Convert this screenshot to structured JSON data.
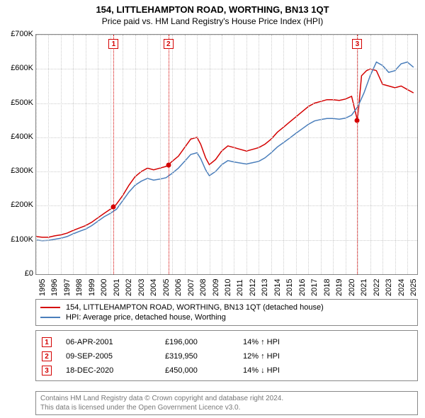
{
  "title": "154, LITTLEHAMPTON ROAD, WORTHING, BN13 1QT",
  "subtitle": "Price paid vs. HM Land Registry's House Price Index (HPI)",
  "chart": {
    "type": "line",
    "background_color": "#ffffff",
    "grid_color": "#cccccc",
    "x_min": 1995,
    "x_max": 2025.8,
    "y_min": 0,
    "y_max": 700000,
    "y_ticks": [
      0,
      100000,
      200000,
      300000,
      400000,
      500000,
      600000,
      700000
    ],
    "y_tick_labels": [
      "£0",
      "£100K",
      "£200K",
      "£300K",
      "£400K",
      "£500K",
      "£600K",
      "£700K"
    ],
    "x_ticks": [
      1995,
      1996,
      1997,
      1998,
      1999,
      2000,
      2001,
      2002,
      2003,
      2004,
      2005,
      2006,
      2007,
      2008,
      2009,
      2010,
      2011,
      2012,
      2013,
      2014,
      2015,
      2016,
      2017,
      2018,
      2019,
      2020,
      2021,
      2022,
      2023,
      2024,
      2025
    ],
    "series": [
      {
        "name": "property",
        "label": "154, LITTLEHAMPTON ROAD, WORTHING, BN13 1QT (detached house)",
        "color": "#d40000",
        "line_width": 1.5,
        "data": [
          [
            1995.0,
            110000
          ],
          [
            1995.5,
            108000
          ],
          [
            1996.0,
            108000
          ],
          [
            1996.5,
            112000
          ],
          [
            1997.0,
            115000
          ],
          [
            1997.5,
            120000
          ],
          [
            1998.0,
            128000
          ],
          [
            1998.5,
            135000
          ],
          [
            1999.0,
            142000
          ],
          [
            1999.5,
            152000
          ],
          [
            2000.0,
            165000
          ],
          [
            2000.5,
            178000
          ],
          [
            2001.0,
            190000
          ],
          [
            2001.26,
            196000
          ],
          [
            2001.5,
            205000
          ],
          [
            2002.0,
            230000
          ],
          [
            2002.5,
            260000
          ],
          [
            2003.0,
            285000
          ],
          [
            2003.5,
            300000
          ],
          [
            2004.0,
            310000
          ],
          [
            2004.5,
            305000
          ],
          [
            2005.0,
            310000
          ],
          [
            2005.5,
            315000
          ],
          [
            2005.69,
            319950
          ],
          [
            2006.0,
            330000
          ],
          [
            2006.5,
            345000
          ],
          [
            2007.0,
            370000
          ],
          [
            2007.5,
            395000
          ],
          [
            2008.0,
            400000
          ],
          [
            2008.3,
            380000
          ],
          [
            2008.7,
            340000
          ],
          [
            2009.0,
            320000
          ],
          [
            2009.5,
            335000
          ],
          [
            2010.0,
            360000
          ],
          [
            2010.5,
            375000
          ],
          [
            2011.0,
            370000
          ],
          [
            2011.5,
            365000
          ],
          [
            2012.0,
            360000
          ],
          [
            2012.5,
            365000
          ],
          [
            2013.0,
            370000
          ],
          [
            2013.5,
            380000
          ],
          [
            2014.0,
            395000
          ],
          [
            2014.5,
            415000
          ],
          [
            2015.0,
            430000
          ],
          [
            2015.5,
            445000
          ],
          [
            2016.0,
            460000
          ],
          [
            2016.5,
            475000
          ],
          [
            2017.0,
            490000
          ],
          [
            2017.5,
            500000
          ],
          [
            2018.0,
            505000
          ],
          [
            2018.5,
            510000
          ],
          [
            2019.0,
            510000
          ],
          [
            2019.5,
            508000
          ],
          [
            2020.0,
            512000
          ],
          [
            2020.5,
            520000
          ],
          [
            2020.96,
            450000
          ],
          [
            2021.0,
            460000
          ],
          [
            2021.3,
            580000
          ],
          [
            2021.7,
            595000
          ],
          [
            2022.0,
            600000
          ],
          [
            2022.5,
            595000
          ],
          [
            2023.0,
            555000
          ],
          [
            2023.5,
            550000
          ],
          [
            2024.0,
            545000
          ],
          [
            2024.5,
            550000
          ],
          [
            2025.0,
            540000
          ],
          [
            2025.5,
            530000
          ]
        ]
      },
      {
        "name": "hpi",
        "label": "HPI: Average price, detached house, Worthing",
        "color": "#4a7ebb",
        "line_width": 1.5,
        "data": [
          [
            1995.0,
            100000
          ],
          [
            1995.5,
            98000
          ],
          [
            1996.0,
            99000
          ],
          [
            1996.5,
            102000
          ],
          [
            1997.0,
            105000
          ],
          [
            1997.5,
            110000
          ],
          [
            1998.0,
            118000
          ],
          [
            1998.5,
            125000
          ],
          [
            1999.0,
            132000
          ],
          [
            1999.5,
            142000
          ],
          [
            2000.0,
            155000
          ],
          [
            2000.5,
            168000
          ],
          [
            2001.0,
            178000
          ],
          [
            2001.5,
            190000
          ],
          [
            2002.0,
            215000
          ],
          [
            2002.5,
            240000
          ],
          [
            2003.0,
            260000
          ],
          [
            2003.5,
            272000
          ],
          [
            2004.0,
            280000
          ],
          [
            2004.5,
            275000
          ],
          [
            2005.0,
            278000
          ],
          [
            2005.5,
            282000
          ],
          [
            2006.0,
            295000
          ],
          [
            2006.5,
            310000
          ],
          [
            2007.0,
            330000
          ],
          [
            2007.5,
            350000
          ],
          [
            2008.0,
            355000
          ],
          [
            2008.3,
            338000
          ],
          [
            2008.7,
            305000
          ],
          [
            2009.0,
            288000
          ],
          [
            2009.5,
            300000
          ],
          [
            2010.0,
            320000
          ],
          [
            2010.5,
            332000
          ],
          [
            2011.0,
            328000
          ],
          [
            2011.5,
            325000
          ],
          [
            2012.0,
            322000
          ],
          [
            2012.5,
            326000
          ],
          [
            2013.0,
            330000
          ],
          [
            2013.5,
            340000
          ],
          [
            2014.0,
            355000
          ],
          [
            2014.5,
            372000
          ],
          [
            2015.0,
            385000
          ],
          [
            2015.5,
            398000
          ],
          [
            2016.0,
            412000
          ],
          [
            2016.5,
            425000
          ],
          [
            2017.0,
            438000
          ],
          [
            2017.5,
            448000
          ],
          [
            2018.0,
            452000
          ],
          [
            2018.5,
            455000
          ],
          [
            2019.0,
            455000
          ],
          [
            2019.5,
            453000
          ],
          [
            2020.0,
            456000
          ],
          [
            2020.5,
            465000
          ],
          [
            2021.0,
            490000
          ],
          [
            2021.5,
            530000
          ],
          [
            2022.0,
            580000
          ],
          [
            2022.5,
            620000
          ],
          [
            2023.0,
            610000
          ],
          [
            2023.5,
            590000
          ],
          [
            2024.0,
            595000
          ],
          [
            2024.5,
            615000
          ],
          [
            2025.0,
            620000
          ],
          [
            2025.5,
            605000
          ]
        ]
      }
    ],
    "markers": [
      {
        "n": "1",
        "x": 2001.26,
        "y": 196000,
        "color": "#d40000"
      },
      {
        "n": "2",
        "x": 2005.69,
        "y": 319950,
        "color": "#d40000"
      },
      {
        "n": "3",
        "x": 2020.96,
        "y": 450000,
        "color": "#d40000"
      }
    ]
  },
  "legend": [
    {
      "color": "#d40000",
      "label": "154, LITTLEHAMPTON ROAD, WORTHING, BN13 1QT (detached house)"
    },
    {
      "color": "#4a7ebb",
      "label": "HPI: Average price, detached house, Worthing"
    }
  ],
  "events": [
    {
      "n": "1",
      "color": "#d40000",
      "date": "06-APR-2001",
      "price": "£196,000",
      "change": "14% ↑ HPI"
    },
    {
      "n": "2",
      "color": "#d40000",
      "date": "09-SEP-2005",
      "price": "£319,950",
      "change": "12% ↑ HPI"
    },
    {
      "n": "3",
      "color": "#d40000",
      "date": "18-DEC-2020",
      "price": "£450,000",
      "change": "14% ↓ HPI"
    }
  ],
  "footer_line1": "Contains HM Land Registry data © Crown copyright and database right 2024.",
  "footer_line2": "This data is licensed under the Open Government Licence v3.0."
}
